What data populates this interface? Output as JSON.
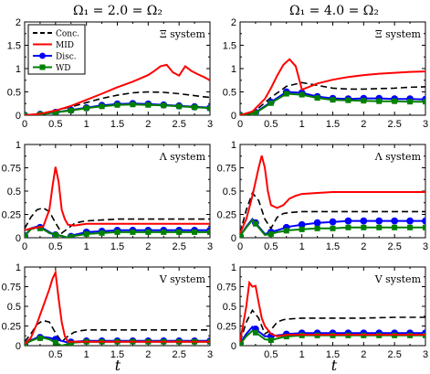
{
  "figure": {
    "column_titles": [
      "Ω₁ = 2.0 = Ω₂",
      "Ω₁ = 4.0 = Ω₂"
    ],
    "xlabel": "t"
  },
  "legend": {
    "entries": [
      {
        "name": "Conc.",
        "color": "#000000",
        "style": "dashed",
        "marker": "none"
      },
      {
        "name": "MID",
        "color": "#ff0000",
        "style": "solid",
        "marker": "none"
      },
      {
        "name": "Disc.",
        "color": "#0000ff",
        "style": "solid",
        "marker": "circle"
      },
      {
        "name": "WD",
        "color": "#008000",
        "style": "solid",
        "marker": "square"
      }
    ]
  },
  "chart_data": [
    {
      "type": "line",
      "row": 0,
      "col": 0,
      "title": "Ξ system",
      "xlim": [
        0,
        3
      ],
      "ylim": [
        0,
        2
      ],
      "xticks": [
        "0",
        "0.5",
        "1",
        "1.5",
        "2",
        "2.5",
        "3"
      ],
      "yticks": [
        "0",
        "0.5",
        "1",
        "1.5",
        "2"
      ],
      "series": [
        {
          "name": "Conc.",
          "x": [
            0,
            0.25,
            0.5,
            0.75,
            1,
            1.25,
            1.5,
            1.75,
            2,
            2.25,
            2.5,
            2.75,
            3
          ],
          "y": [
            0,
            0.03,
            0.1,
            0.18,
            0.27,
            0.36,
            0.43,
            0.48,
            0.5,
            0.49,
            0.46,
            0.42,
            0.38
          ]
        },
        {
          "name": "MID",
          "x": [
            0,
            0.25,
            0.5,
            0.75,
            1,
            1.25,
            1.5,
            1.75,
            2,
            2.1,
            2.2,
            2.3,
            2.4,
            2.5,
            2.6,
            2.7,
            2.8,
            2.9,
            3
          ],
          "y": [
            0,
            0.03,
            0.1,
            0.2,
            0.33,
            0.46,
            0.6,
            0.72,
            0.86,
            0.95,
            1.05,
            1.08,
            0.92,
            0.85,
            1.05,
            0.95,
            0.88,
            0.82,
            0.75
          ]
        },
        {
          "name": "Disc.",
          "x": [
            0,
            0.25,
            0.5,
            0.75,
            1,
            1.25,
            1.5,
            1.75,
            2,
            2.25,
            2.5,
            2.75,
            3
          ],
          "y": [
            0,
            0.02,
            0.06,
            0.11,
            0.16,
            0.21,
            0.24,
            0.25,
            0.24,
            0.22,
            0.2,
            0.18,
            0.16
          ]
        },
        {
          "name": "WD",
          "x": [
            0,
            0.25,
            0.5,
            0.75,
            1,
            1.25,
            1.5,
            1.75,
            2,
            2.25,
            2.5,
            2.75,
            3
          ],
          "y": [
            0,
            0.02,
            0.06,
            0.1,
            0.15,
            0.19,
            0.22,
            0.23,
            0.22,
            0.21,
            0.19,
            0.17,
            0.15
          ]
        }
      ]
    },
    {
      "type": "line",
      "row": 0,
      "col": 1,
      "title": "Ξ system",
      "xlim": [
        0,
        3
      ],
      "ylim": [
        0,
        2
      ],
      "xticks": [
        "0",
        "0.5",
        "1",
        "1.5",
        "2",
        "2.5",
        "3"
      ],
      "yticks": [
        "0",
        "0.5",
        "1",
        "1.5",
        "2"
      ],
      "series": [
        {
          "name": "Conc.",
          "x": [
            0,
            0.25,
            0.5,
            0.75,
            1,
            1.25,
            1.5,
            1.75,
            2,
            2.25,
            2.5,
            2.75,
            3
          ],
          "y": [
            0,
            0.1,
            0.38,
            0.62,
            0.7,
            0.64,
            0.58,
            0.56,
            0.56,
            0.57,
            0.58,
            0.6,
            0.61
          ]
        },
        {
          "name": "MID",
          "x": [
            0,
            0.2,
            0.4,
            0.5,
            0.6,
            0.7,
            0.8,
            0.9,
            1,
            1.1,
            1.25,
            1.5,
            1.75,
            2,
            2.25,
            2.5,
            2.75,
            3
          ],
          "y": [
            0,
            0.08,
            0.35,
            0.58,
            0.85,
            1.08,
            1.2,
            1.05,
            0.55,
            0.6,
            0.68,
            0.76,
            0.82,
            0.86,
            0.89,
            0.91,
            0.93,
            0.94
          ]
        },
        {
          "name": "Disc.",
          "x": [
            0,
            0.25,
            0.5,
            0.75,
            1,
            1.25,
            1.5,
            1.75,
            2,
            2.25,
            2.5,
            2.75,
            3
          ],
          "y": [
            0,
            0.06,
            0.28,
            0.5,
            0.48,
            0.4,
            0.36,
            0.35,
            0.36,
            0.36,
            0.35,
            0.35,
            0.34
          ]
        },
        {
          "name": "WD",
          "x": [
            0,
            0.25,
            0.5,
            0.75,
            1,
            1.25,
            1.5,
            1.75,
            2,
            2.25,
            2.5,
            2.75,
            3
          ],
          "y": [
            0,
            0.05,
            0.26,
            0.46,
            0.44,
            0.37,
            0.33,
            0.32,
            0.31,
            0.3,
            0.3,
            0.29,
            0.29
          ]
        }
      ]
    },
    {
      "type": "line",
      "row": 1,
      "col": 0,
      "title": "Λ system",
      "xlim": [
        0,
        3
      ],
      "ylim": [
        0,
        1
      ],
      "xticks": [
        "0",
        "0.5",
        "1",
        "1.5",
        "2",
        "2.5",
        "3"
      ],
      "yticks": [
        "0",
        "0.25",
        "0.5",
        "0.75",
        "1"
      ],
      "series": [
        {
          "name": "Conc.",
          "x": [
            0,
            0.1,
            0.2,
            0.3,
            0.4,
            0.5,
            0.6,
            0.7,
            0.8,
            0.9,
            1,
            1.25,
            1.5,
            2,
            2.5,
            3
          ],
          "y": [
            0.1,
            0.22,
            0.3,
            0.32,
            0.28,
            0.16,
            0.05,
            0.1,
            0.15,
            0.17,
            0.18,
            0.19,
            0.2,
            0.2,
            0.2,
            0.2
          ]
        },
        {
          "name": "MID",
          "x": [
            0,
            0.1,
            0.2,
            0.3,
            0.4,
            0.45,
            0.5,
            0.55,
            0.6,
            0.65,
            0.7,
            0.8,
            0.9,
            1,
            1.25,
            1.5,
            2,
            2.5,
            3
          ],
          "y": [
            0.08,
            0.1,
            0.11,
            0.12,
            0.3,
            0.55,
            0.76,
            0.6,
            0.3,
            0.2,
            0.14,
            0.13,
            0.14,
            0.15,
            0.15,
            0.15,
            0.15,
            0.15,
            0.15
          ]
        },
        {
          "name": "Disc.",
          "x": [
            0,
            0.1,
            0.2,
            0.3,
            0.4,
            0.5,
            0.6,
            0.7,
            0.8,
            1,
            1.25,
            1.5,
            1.75,
            2,
            2.25,
            2.5,
            2.75,
            3
          ],
          "y": [
            0.02,
            0.1,
            0.12,
            0.1,
            0.06,
            0.03,
            0.02,
            0.0,
            0.03,
            0.06,
            0.07,
            0.08,
            0.08,
            0.08,
            0.08,
            0.08,
            0.08,
            0.08
          ]
        },
        {
          "name": "WD",
          "x": [
            0,
            0.1,
            0.2,
            0.3,
            0.4,
            0.5,
            0.6,
            0.7,
            0.8,
            1,
            1.25,
            1.5,
            1.75,
            2,
            2.25,
            2.5,
            2.75,
            3
          ],
          "y": [
            0.02,
            0.09,
            0.11,
            0.09,
            0.05,
            0.03,
            0.02,
            0.0,
            0.02,
            0.04,
            0.05,
            0.06,
            0.06,
            0.06,
            0.06,
            0.06,
            0.06,
            0.06
          ]
        }
      ]
    },
    {
      "type": "line",
      "row": 1,
      "col": 1,
      "title": "Λ system",
      "xlim": [
        0,
        3
      ],
      "ylim": [
        0,
        1
      ],
      "xticks": [
        "0",
        "0.5",
        "1",
        "1.5",
        "2",
        "2.5",
        "3"
      ],
      "yticks": [
        "0",
        "0.25",
        "0.5",
        "0.75",
        "1"
      ],
      "series": [
        {
          "name": "Conc.",
          "x": [
            0,
            0.1,
            0.2,
            0.3,
            0.4,
            0.5,
            0.6,
            0.7,
            0.8,
            1,
            1.25,
            1.5,
            2,
            2.5,
            3
          ],
          "y": [
            0.05,
            0.3,
            0.48,
            0.4,
            0.2,
            0.1,
            0.22,
            0.26,
            0.27,
            0.28,
            0.28,
            0.28,
            0.28,
            0.28,
            0.28
          ]
        },
        {
          "name": "MID",
          "x": [
            0,
            0.1,
            0.2,
            0.3,
            0.35,
            0.4,
            0.45,
            0.5,
            0.6,
            0.7,
            0.8,
            0.9,
            1,
            1.25,
            1.5,
            1.75,
            2,
            2.5,
            3
          ],
          "y": [
            0.05,
            0.2,
            0.45,
            0.75,
            0.88,
            0.75,
            0.5,
            0.35,
            0.32,
            0.35,
            0.42,
            0.45,
            0.47,
            0.48,
            0.49,
            0.49,
            0.49,
            0.49,
            0.49
          ]
        },
        {
          "name": "Disc.",
          "x": [
            0,
            0.1,
            0.2,
            0.3,
            0.4,
            0.5,
            0.6,
            0.7,
            0.8,
            1,
            1.25,
            1.5,
            1.75,
            2,
            2.25,
            2.5,
            2.75,
            3
          ],
          "y": [
            0.02,
            0.12,
            0.2,
            0.12,
            0.04,
            0.06,
            0.08,
            0.1,
            0.12,
            0.14,
            0.16,
            0.17,
            0.18,
            0.18,
            0.18,
            0.18,
            0.18,
            0.18
          ]
        },
        {
          "name": "WD",
          "x": [
            0,
            0.1,
            0.2,
            0.3,
            0.4,
            0.5,
            0.6,
            0.7,
            0.8,
            1,
            1.25,
            1.5,
            1.75,
            2,
            2.25,
            2.5,
            2.75,
            3
          ],
          "y": [
            0.02,
            0.11,
            0.19,
            0.11,
            0.03,
            0.04,
            0.06,
            0.07,
            0.08,
            0.09,
            0.1,
            0.1,
            0.11,
            0.11,
            0.11,
            0.11,
            0.11,
            0.11
          ]
        }
      ]
    },
    {
      "type": "line",
      "row": 2,
      "col": 0,
      "title": "V system",
      "xlim": [
        0,
        3
      ],
      "ylim": [
        0,
        1
      ],
      "xticks": [
        "0.5",
        "1",
        "1.5",
        "2",
        "2.5",
        "3"
      ],
      "yticks": [
        "0",
        "0.25",
        "0.5",
        "0.75",
        "1"
      ],
      "series": [
        {
          "name": "Conc.",
          "x": [
            0,
            0.1,
            0.2,
            0.3,
            0.4,
            0.5,
            0.6,
            0.7,
            0.8,
            0.9,
            1,
            1.25,
            1.5,
            2,
            2.5,
            3
          ],
          "y": [
            0.05,
            0.15,
            0.27,
            0.32,
            0.3,
            0.16,
            0.05,
            0.12,
            0.17,
            0.19,
            0.2,
            0.2,
            0.2,
            0.2,
            0.2,
            0.2
          ]
        },
        {
          "name": "MID",
          "x": [
            0,
            0.1,
            0.2,
            0.3,
            0.4,
            0.45,
            0.5,
            0.55,
            0.6,
            0.65,
            0.7,
            0.8,
            1,
            1.5,
            2,
            2.5,
            3
          ],
          "y": [
            0.02,
            0.1,
            0.28,
            0.5,
            0.72,
            0.85,
            0.93,
            0.6,
            0.3,
            0.12,
            0.05,
            0.05,
            0.05,
            0.05,
            0.05,
            0.05,
            0.05
          ]
        },
        {
          "name": "Disc.",
          "x": [
            0,
            0.1,
            0.2,
            0.3,
            0.4,
            0.5,
            0.6,
            0.7,
            0.8,
            1,
            1.25,
            1.5,
            1.75,
            2,
            2.25,
            2.5,
            2.75,
            3
          ],
          "y": [
            0.02,
            0.07,
            0.1,
            0.11,
            0.1,
            0.08,
            0.06,
            0.04,
            0.05,
            0.06,
            0.06,
            0.06,
            0.06,
            0.06,
            0.06,
            0.06,
            0.06,
            0.06
          ]
        },
        {
          "name": "WD",
          "x": [
            0,
            0.1,
            0.2,
            0.3,
            0.4,
            0.5,
            0.6,
            0.7,
            0.8,
            1,
            1.25,
            1.5,
            1.75,
            2,
            2.25,
            2.5,
            2.75,
            3
          ],
          "y": [
            0.02,
            0.06,
            0.09,
            0.1,
            0.08,
            0.04,
            0.0,
            0.02,
            0.04,
            0.05,
            0.05,
            0.05,
            0.05,
            0.05,
            0.05,
            0.05,
            0.05,
            0.05
          ]
        }
      ]
    },
    {
      "type": "line",
      "row": 2,
      "col": 1,
      "title": "V system",
      "xlim": [
        0,
        3
      ],
      "ylim": [
        0,
        1
      ],
      "xticks": [
        "0.5",
        "1",
        "1.5",
        "2",
        "2.5",
        "3"
      ],
      "yticks": [
        "0",
        "0.25",
        "0.5",
        "0.75",
        "1"
      ],
      "series": [
        {
          "name": "Conc.",
          "x": [
            0,
            0.1,
            0.2,
            0.3,
            0.4,
            0.5,
            0.6,
            0.7,
            0.8,
            1,
            1.25,
            1.5,
            2,
            2.5,
            3
          ],
          "y": [
            0.05,
            0.3,
            0.45,
            0.35,
            0.15,
            0.2,
            0.3,
            0.33,
            0.34,
            0.35,
            0.35,
            0.35,
            0.35,
            0.36,
            0.36
          ]
        },
        {
          "name": "MID",
          "x": [
            0,
            0.1,
            0.15,
            0.2,
            0.25,
            0.3,
            0.35,
            0.4,
            0.5,
            0.6,
            0.7,
            0.8,
            1,
            1.5,
            2,
            2.5,
            3
          ],
          "y": [
            0.05,
            0.5,
            0.8,
            0.75,
            0.76,
            0.55,
            0.35,
            0.25,
            0.15,
            0.12,
            0.13,
            0.14,
            0.14,
            0.14,
            0.14,
            0.14,
            0.14
          ]
        },
        {
          "name": "Disc.",
          "x": [
            0,
            0.1,
            0.2,
            0.3,
            0.4,
            0.5,
            0.6,
            0.7,
            0.8,
            1,
            1.25,
            1.5,
            1.75,
            2,
            2.25,
            2.5,
            2.75,
            3
          ],
          "y": [
            0.03,
            0.15,
            0.24,
            0.18,
            0.12,
            0.12,
            0.13,
            0.14,
            0.15,
            0.16,
            0.16,
            0.16,
            0.16,
            0.16,
            0.16,
            0.16,
            0.16,
            0.16
          ]
        },
        {
          "name": "WD",
          "x": [
            0,
            0.1,
            0.2,
            0.3,
            0.4,
            0.5,
            0.6,
            0.7,
            0.8,
            1,
            1.25,
            1.5,
            1.75,
            2,
            2.25,
            2.5,
            2.75,
            3
          ],
          "y": [
            0.02,
            0.12,
            0.19,
            0.14,
            0.08,
            0.07,
            0.09,
            0.11,
            0.12,
            0.13,
            0.13,
            0.13,
            0.13,
            0.13,
            0.13,
            0.13,
            0.13,
            0.13
          ]
        }
      ]
    }
  ]
}
